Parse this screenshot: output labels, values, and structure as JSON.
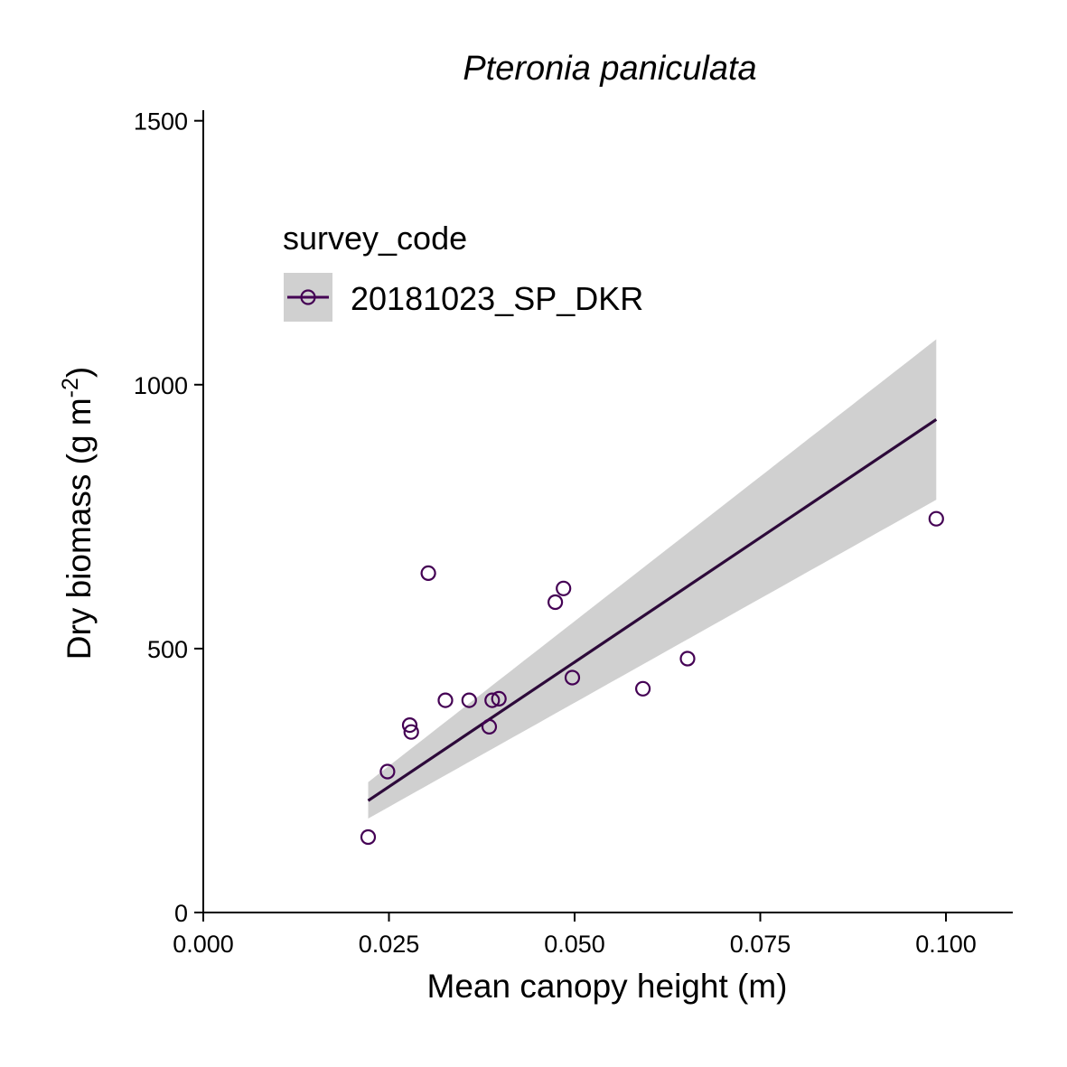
{
  "chart_data": {
    "type": "scatter",
    "title": "Pteronia paniculata",
    "xlabel": "Mean canopy height (m)",
    "ylabel_main": "Dry biomass (g m",
    "ylabel_sup": "-2",
    "ylabel_close": ")",
    "xlim": [
      0.0,
      0.109
    ],
    "ylim": [
      0,
      1520
    ],
    "x_ticks": [
      0.0,
      0.025,
      0.05,
      0.075,
      0.1
    ],
    "x_tick_labels": [
      "0.000",
      "0.025",
      "0.050",
      "0.075",
      "0.100"
    ],
    "y_ticks": [
      0,
      500,
      1000,
      1500
    ],
    "y_tick_labels": [
      "0",
      "500",
      "1000",
      "1500"
    ],
    "grid": false,
    "legend": {
      "title": "survey_code",
      "placement": "top-left",
      "entries": [
        "20181023_SP_DKR"
      ]
    },
    "series": [
      {
        "name": "20181023_SP_DKR",
        "color": "#440154",
        "x": [
          0.0222,
          0.0248,
          0.0278,
          0.028,
          0.0303,
          0.0326,
          0.0358,
          0.0385,
          0.0389,
          0.0398,
          0.0474,
          0.0485,
          0.0497,
          0.0592,
          0.0652,
          0.0987
        ],
        "y": [
          143,
          267,
          355,
          342,
          643,
          402,
          402,
          352,
          402,
          405,
          588,
          614,
          445,
          424,
          481,
          746
        ]
      }
    ],
    "fit": {
      "type": "linear",
      "color": "#2d0a3a",
      "band_color": "#d0d0d0",
      "x": [
        0.0222,
        0.0987
      ],
      "y": [
        212,
        934
      ],
      "ci_lower": [
        178,
        782
      ],
      "ci_upper": [
        247,
        1086
      ]
    }
  }
}
